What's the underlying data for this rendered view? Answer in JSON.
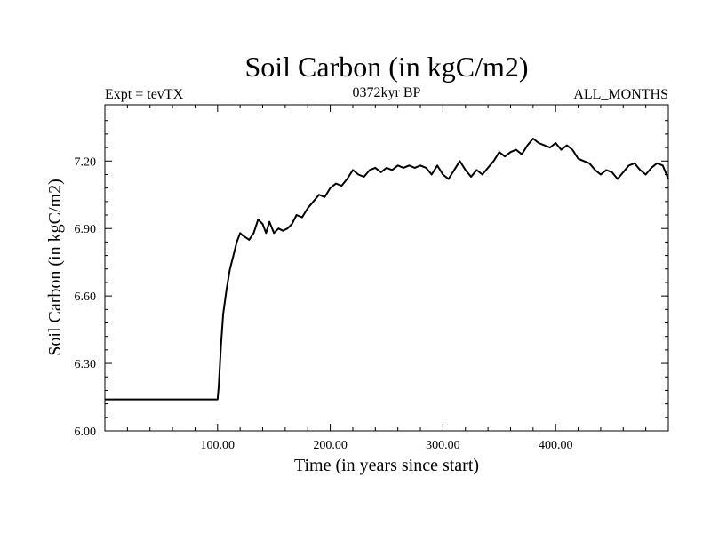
{
  "chart_data": {
    "type": "line",
    "title": "Soil Carbon (in kgC/m2)",
    "subtitle_left": "Expt = tevTX",
    "subtitle_center": "0372kyr BP",
    "subtitle_right": "ALL_MONTHS",
    "xlabel": "Time (in years since start)",
    "ylabel": "Soil Carbon (in kgC/m2)",
    "xlim": [
      0,
      500
    ],
    "ylim": [
      6.0,
      7.45
    ],
    "xticks": [
      "100.00",
      "200.00",
      "300.00",
      "400.00"
    ],
    "xtick_values": [
      100,
      200,
      300,
      400
    ],
    "yticks": [
      "6.00",
      "6.30",
      "6.60",
      "6.90",
      "7.20"
    ],
    "ytick_values": [
      6.0,
      6.3,
      6.6,
      6.9,
      7.2
    ],
    "grid": false,
    "series": [
      {
        "x": [
          0,
          100,
          101,
          103,
          105,
          108,
          111,
          114,
          117,
          120,
          122,
          125,
          128,
          132,
          136,
          140,
          143,
          146,
          150,
          154,
          158,
          162,
          166,
          170,
          175,
          180,
          185,
          190,
          195,
          200,
          205,
          210,
          215,
          220,
          225,
          230,
          235,
          240,
          245,
          250,
          255,
          260,
          265,
          270,
          275,
          280,
          285,
          290,
          295,
          300,
          305,
          310,
          315,
          320,
          325,
          330,
          335,
          340,
          345,
          350,
          355,
          360,
          365,
          370,
          375,
          380,
          385,
          390,
          395,
          400,
          405,
          410,
          415,
          420,
          425,
          430,
          435,
          440,
          445,
          450,
          455,
          460,
          465,
          470,
          475,
          480,
          485,
          490,
          495,
          500
        ],
        "y": [
          6.14,
          6.14,
          6.2,
          6.38,
          6.52,
          6.63,
          6.72,
          6.78,
          6.84,
          6.88,
          6.87,
          6.86,
          6.85,
          6.88,
          6.94,
          6.92,
          6.88,
          6.93,
          6.88,
          6.9,
          6.89,
          6.9,
          6.92,
          6.96,
          6.95,
          6.99,
          7.02,
          7.05,
          7.04,
          7.08,
          7.1,
          7.09,
          7.12,
          7.16,
          7.14,
          7.13,
          7.16,
          7.17,
          7.15,
          7.17,
          7.16,
          7.18,
          7.17,
          7.18,
          7.17,
          7.18,
          7.17,
          7.14,
          7.18,
          7.14,
          7.12,
          7.16,
          7.2,
          7.16,
          7.13,
          7.16,
          7.14,
          7.17,
          7.2,
          7.24,
          7.22,
          7.24,
          7.25,
          7.23,
          7.27,
          7.3,
          7.28,
          7.27,
          7.26,
          7.28,
          7.25,
          7.27,
          7.25,
          7.21,
          7.2,
          7.19,
          7.16,
          7.14,
          7.16,
          7.15,
          7.12,
          7.15,
          7.18,
          7.19,
          7.16,
          7.14,
          7.17,
          7.19,
          7.18,
          7.12
        ]
      }
    ]
  }
}
